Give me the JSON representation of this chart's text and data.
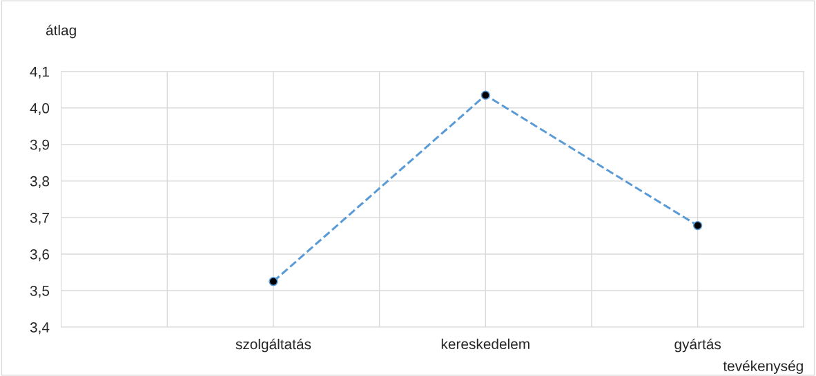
{
  "chart_data": {
    "type": "line",
    "xlabel": "tevékenység",
    "ylabel": "átlag",
    "categories": [
      null,
      "szolgáltatás",
      null,
      "kereskedelem",
      null,
      "gyártás",
      null
    ],
    "series": [
      {
        "color": "#5b9bd5",
        "values": [
          null,
          3.525,
          null,
          4.035,
          null,
          3.678,
          null
        ]
      }
    ],
    "ylim": [
      3.4,
      4.1
    ],
    "yticks": [
      {
        "value": 3.4,
        "label": "3,4"
      },
      {
        "value": 3.5,
        "label": "3,5"
      },
      {
        "value": 3.6,
        "label": "3,6"
      },
      {
        "value": 3.7,
        "label": "3,7"
      },
      {
        "value": 3.8,
        "label": "3,8"
      },
      {
        "value": 3.9,
        "label": "3,9"
      },
      {
        "value": 4.0,
        "label": "4,0"
      },
      {
        "value": 4.1,
        "label": "4,1"
      }
    ],
    "grid": true,
    "marker": "circle",
    "line_style": "dashed"
  }
}
